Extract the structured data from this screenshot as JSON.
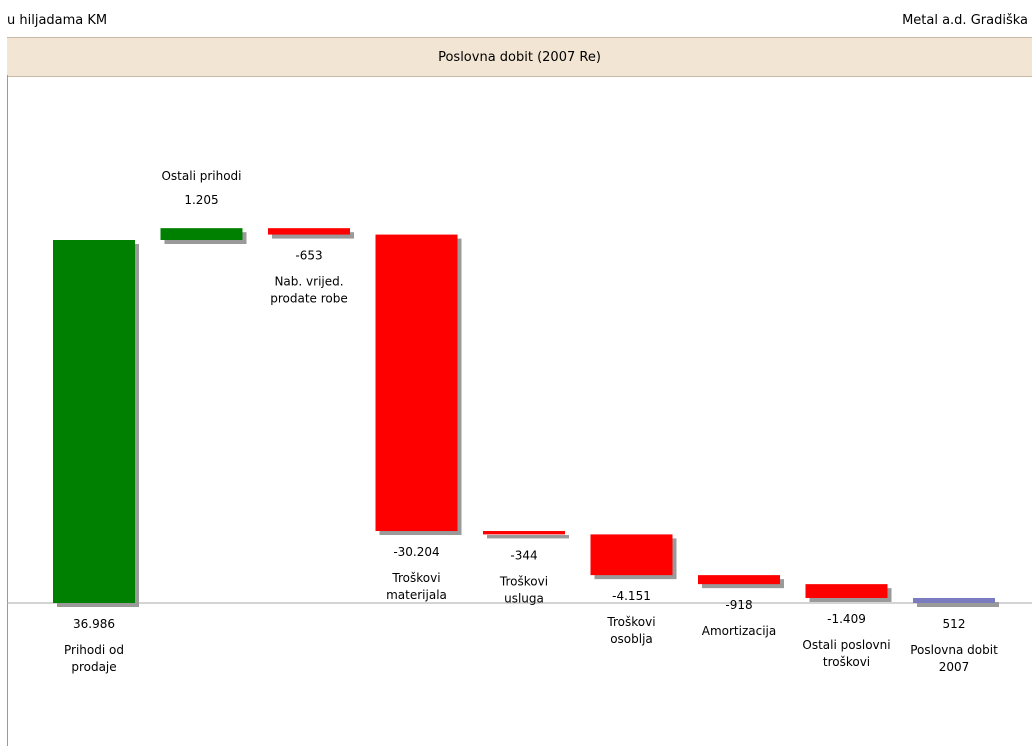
{
  "header": {
    "units": "u hiljadama KM",
    "company": "Metal a.d. Gradiška",
    "title": "Poslovna dobit (2007 Re)"
  },
  "chart_data": {
    "type": "waterfall",
    "title": "Poslovna dobit (2007 Re)",
    "categories": [
      "Prihodi od prodaje",
      "Ostali prihodi",
      "Nab. vrijed. prodate robe",
      "Troškovi materijala",
      "Troškovi usluga",
      "Troškovi osoblja",
      "Amortizacija",
      "Ostali poslovni troškovi",
      "Poslovna dobit 2007"
    ],
    "label_lines": [
      [
        "Prihodi od",
        "prodaje"
      ],
      [
        "Ostali prihodi"
      ],
      [
        "Nab. vrijed.",
        "prodate robe"
      ],
      [
        "Troškovi",
        "materijala"
      ],
      [
        "Troškovi",
        "usluga"
      ],
      [
        "Troškovi",
        "osoblja"
      ],
      [
        "Amortizacija"
      ],
      [
        "Ostali poslovni",
        "troškovi"
      ],
      [
        "Poslovna dobit",
        "2007"
      ]
    ],
    "values": [
      36986,
      1205,
      -653,
      -30204,
      -344,
      -4151,
      -918,
      -1409,
      512
    ],
    "value_labels": [
      "36.986",
      "1.205",
      "-653",
      "-30.204",
      "-344",
      "-4.151",
      "-918",
      "-1.409",
      "512"
    ],
    "bar_kinds": [
      "increase",
      "increase",
      "decrease",
      "decrease",
      "decrease",
      "decrease",
      "decrease",
      "decrease",
      "total"
    ],
    "colors": {
      "increase": "#008000",
      "decrease": "#ff0000",
      "total": "#7b7bc0",
      "shadow": "#9a9a9a",
      "axis": "#aaaaaa"
    },
    "grid": false,
    "legend": "none"
  }
}
